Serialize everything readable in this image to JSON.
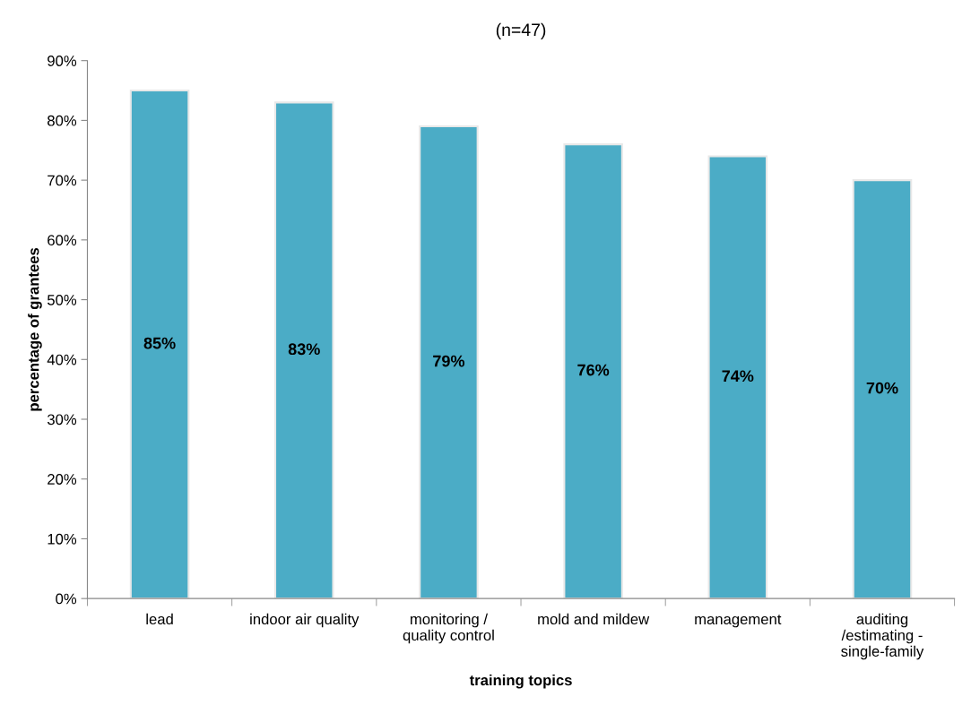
{
  "chart_data": {
    "type": "bar",
    "title": "(n=47)",
    "xlabel": "training topics",
    "ylabel": "percentage of grantees",
    "categories": [
      "lead",
      "indoor air quality",
      "monitoring /\nquality control",
      "mold and mildew",
      "management",
      "auditing\n/estimating -\nsingle-family"
    ],
    "values": [
      85,
      83,
      79,
      76,
      74,
      70
    ],
    "value_labels": [
      "85%",
      "83%",
      "79%",
      "76%",
      "74%",
      "70%"
    ],
    "color": "#4bacc6",
    "ylim": [
      0,
      90
    ],
    "yticks": [
      {
        "value": 0,
        "label": "0%"
      },
      {
        "value": 10,
        "label": "10%"
      },
      {
        "value": 20,
        "label": "20%"
      },
      {
        "value": 30,
        "label": "30%"
      },
      {
        "value": 40,
        "label": "40%"
      },
      {
        "value": 50,
        "label": "50%"
      },
      {
        "value": 60,
        "label": "60%"
      },
      {
        "value": 70,
        "label": "70%"
      },
      {
        "value": 80,
        "label": "80%"
      },
      {
        "value": 90,
        "label": "90%"
      }
    ],
    "grid": false,
    "legend": false
  }
}
